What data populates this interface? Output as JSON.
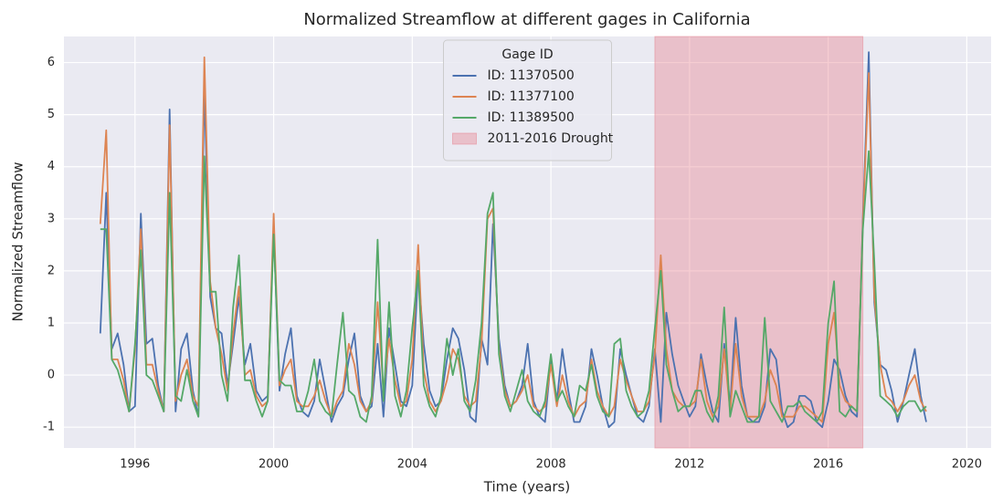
{
  "chart_data": {
    "type": "line",
    "title": "Normalized Streamflow at different gages in California",
    "xlabel": "Time (years)",
    "ylabel": "Normalized Streamflow",
    "legend_title": "Gage ID",
    "legend_loc": "upper center",
    "grid": true,
    "xlim": [
      1993.95,
      2020.7
    ],
    "ylim": [
      -1.4,
      6.5
    ],
    "xticks": [
      1996,
      2000,
      2004,
      2008,
      2012,
      2016,
      2020
    ],
    "yticks": [
      -1,
      0,
      1,
      2,
      3,
      4,
      5,
      6
    ],
    "drought": {
      "label": "2011-2016 Drought",
      "span": [
        2011,
        2017
      ],
      "color": "#e8838f"
    },
    "x": [
      1995,
      1995.17,
      1995.33,
      1995.5,
      1995.67,
      1995.83,
      1996,
      1996.17,
      1996.33,
      1996.5,
      1996.67,
      1996.83,
      1997,
      1997.17,
      1997.33,
      1997.5,
      1997.67,
      1997.83,
      1998,
      1998.17,
      1998.33,
      1998.5,
      1998.67,
      1998.83,
      1999,
      1999.17,
      1999.33,
      1999.5,
      1999.67,
      1999.83,
      2000,
      2000.17,
      2000.33,
      2000.5,
      2000.67,
      2000.83,
      2001,
      2001.17,
      2001.33,
      2001.5,
      2001.67,
      2001.83,
      2002,
      2002.17,
      2002.33,
      2002.5,
      2002.67,
      2002.83,
      2003,
      2003.17,
      2003.33,
      2003.5,
      2003.67,
      2003.83,
      2004,
      2004.17,
      2004.33,
      2004.5,
      2004.67,
      2004.83,
      2005,
      2005.17,
      2005.33,
      2005.5,
      2005.67,
      2005.83,
      2006,
      2006.17,
      2006.33,
      2006.5,
      2006.67,
      2006.83,
      2007,
      2007.17,
      2007.33,
      2007.5,
      2007.67,
      2007.83,
      2008,
      2008.17,
      2008.33,
      2008.5,
      2008.67,
      2008.83,
      2009,
      2009.17,
      2009.33,
      2009.5,
      2009.67,
      2009.83,
      2010,
      2010.17,
      2010.33,
      2010.5,
      2010.67,
      2010.83,
      2011,
      2011.17,
      2011.33,
      2011.5,
      2011.67,
      2011.83,
      2012,
      2012.17,
      2012.33,
      2012.5,
      2012.67,
      2012.83,
      2013,
      2013.17,
      2013.33,
      2013.5,
      2013.67,
      2013.83,
      2014,
      2014.17,
      2014.33,
      2014.5,
      2014.67,
      2014.83,
      2015,
      2015.17,
      2015.33,
      2015.5,
      2015.67,
      2015.83,
      2016,
      2016.17,
      2016.33,
      2016.5,
      2016.67,
      2016.83,
      2017,
      2017.17,
      2017.33,
      2017.5,
      2017.67,
      2017.83,
      2018,
      2018.17,
      2018.33,
      2018.5,
      2018.67,
      2018.83
    ],
    "series": [
      {
        "name": "ID: 11370500",
        "color": "#4c72b0",
        "values": [
          0.8,
          3.5,
          0.5,
          0.8,
          0.2,
          -0.7,
          -0.6,
          3.1,
          0.6,
          0.7,
          -0.2,
          -0.7,
          5.1,
          -0.7,
          0.5,
          0.8,
          -0.3,
          -0.8,
          5.5,
          1.5,
          0.9,
          0.8,
          -0.2,
          0.6,
          1.5,
          0.2,
          0.6,
          -0.3,
          -0.5,
          -0.4,
          2.8,
          -0.3,
          0.4,
          0.9,
          -0.4,
          -0.7,
          -0.8,
          -0.5,
          0.3,
          -0.3,
          -0.9,
          -0.6,
          -0.4,
          0.3,
          0.8,
          -0.4,
          -0.7,
          -0.6,
          0.6,
          -0.8,
          0.9,
          0.2,
          -0.5,
          -0.6,
          -0.2,
          2.0,
          0.6,
          -0.3,
          -0.6,
          -0.5,
          0.3,
          0.9,
          0.7,
          0.1,
          -0.8,
          -0.9,
          0.7,
          0.2,
          2.9,
          0.7,
          -0.2,
          -0.6,
          -0.5,
          -0.2,
          0.6,
          -0.5,
          -0.8,
          -0.9,
          0.3,
          -0.5,
          0.5,
          -0.3,
          -0.9,
          -0.9,
          -0.6,
          0.5,
          0.0,
          -0.6,
          -1.0,
          -0.9,
          0.5,
          0.0,
          -0.4,
          -0.8,
          -0.9,
          -0.6,
          0.5,
          -0.9,
          1.2,
          0.4,
          -0.2,
          -0.5,
          -0.8,
          -0.6,
          0.4,
          -0.2,
          -0.7,
          -0.9,
          0.6,
          -0.6,
          1.1,
          -0.2,
          -0.8,
          -0.9,
          -0.9,
          -0.6,
          0.5,
          0.3,
          -0.7,
          -1.0,
          -0.9,
          -0.4,
          -0.4,
          -0.5,
          -0.9,
          -1.0,
          -0.5,
          0.3,
          0.1,
          -0.4,
          -0.7,
          -0.8,
          3.0,
          6.2,
          1.4,
          0.2,
          0.1,
          -0.3,
          -0.9,
          -0.5,
          0.0,
          0.5,
          -0.4,
          -0.9
        ]
      },
      {
        "name": "ID: 11377100",
        "color": "#dd8452",
        "values": [
          2.9,
          4.7,
          0.3,
          0.3,
          -0.1,
          -0.7,
          0.5,
          2.8,
          0.2,
          0.2,
          -0.3,
          -0.7,
          4.8,
          -0.5,
          0.0,
          0.3,
          -0.4,
          -0.6,
          6.1,
          1.8,
          0.9,
          0.4,
          -0.3,
          0.8,
          1.7,
          0.0,
          0.1,
          -0.4,
          -0.6,
          -0.5,
          3.1,
          -0.2,
          0.1,
          0.3,
          -0.5,
          -0.6,
          -0.6,
          -0.4,
          -0.1,
          -0.5,
          -0.8,
          -0.5,
          -0.3,
          0.6,
          0.2,
          -0.5,
          -0.7,
          -0.5,
          1.4,
          -0.3,
          0.7,
          -0.1,
          -0.6,
          -0.5,
          0.3,
          2.5,
          0.1,
          -0.5,
          -0.7,
          -0.5,
          -0.1,
          0.5,
          0.3,
          -0.4,
          -0.6,
          -0.5,
          0.6,
          3.0,
          3.2,
          0.5,
          -0.3,
          -0.6,
          -0.5,
          -0.3,
          0.0,
          -0.6,
          -0.7,
          -0.6,
          0.2,
          -0.6,
          0.0,
          -0.5,
          -0.8,
          -0.6,
          -0.5,
          0.3,
          -0.3,
          -0.6,
          -0.8,
          -0.6,
          0.3,
          -0.1,
          -0.4,
          -0.7,
          -0.7,
          -0.5,
          0.4,
          2.3,
          0.5,
          -0.3,
          -0.5,
          -0.6,
          -0.6,
          -0.5,
          0.3,
          -0.5,
          -0.8,
          -0.6,
          0.5,
          -0.7,
          0.6,
          -0.4,
          -0.8,
          -0.8,
          -0.8,
          -0.5,
          0.1,
          -0.2,
          -0.8,
          -0.8,
          -0.8,
          -0.6,
          -0.6,
          -0.7,
          -0.8,
          -0.9,
          0.6,
          1.2,
          -0.2,
          -0.5,
          -0.6,
          -0.7,
          2.9,
          5.8,
          1.5,
          0.2,
          -0.4,
          -0.5,
          -0.7,
          -0.5,
          -0.2,
          0.0,
          -0.5,
          -0.7
        ]
      },
      {
        "name": "ID: 11389500",
        "color": "#55a868",
        "values": [
          2.8,
          2.8,
          0.3,
          0.1,
          -0.3,
          -0.7,
          0.6,
          2.4,
          0.0,
          -0.1,
          -0.4,
          -0.7,
          3.5,
          -0.4,
          -0.5,
          0.1,
          -0.5,
          -0.8,
          4.2,
          1.6,
          1.6,
          0.0,
          -0.5,
          1.3,
          2.3,
          -0.1,
          -0.1,
          -0.5,
          -0.8,
          -0.5,
          2.7,
          -0.1,
          -0.2,
          -0.2,
          -0.7,
          -0.7,
          -0.3,
          0.3,
          -0.5,
          -0.7,
          -0.8,
          0.2,
          1.2,
          -0.3,
          -0.4,
          -0.8,
          -0.9,
          -0.4,
          2.6,
          -0.5,
          1.4,
          -0.4,
          -0.8,
          -0.3,
          0.9,
          2.0,
          -0.2,
          -0.6,
          -0.8,
          -0.4,
          0.7,
          0.0,
          0.5,
          -0.5,
          -0.7,
          -0.1,
          1.0,
          3.1,
          3.5,
          0.4,
          -0.4,
          -0.7,
          -0.3,
          0.1,
          -0.5,
          -0.7,
          -0.8,
          -0.5,
          0.4,
          -0.5,
          -0.3,
          -0.6,
          -0.8,
          -0.2,
          -0.3,
          0.2,
          -0.4,
          -0.7,
          -0.8,
          0.6,
          0.7,
          -0.3,
          -0.6,
          -0.8,
          -0.7,
          -0.3,
          0.9,
          2.0,
          0.2,
          -0.3,
          -0.7,
          -0.6,
          -0.6,
          -0.3,
          -0.3,
          -0.7,
          -0.9,
          -0.4,
          1.3,
          -0.8,
          -0.3,
          -0.6,
          -0.9,
          -0.9,
          -0.8,
          1.1,
          -0.5,
          -0.7,
          -0.9,
          -0.6,
          -0.6,
          -0.5,
          -0.7,
          -0.8,
          -0.9,
          -0.7,
          1.0,
          1.8,
          -0.7,
          -0.8,
          -0.6,
          -0.7,
          2.8,
          4.3,
          2.2,
          -0.4,
          -0.5,
          -0.6,
          -0.8,
          -0.6,
          -0.5,
          -0.5,
          -0.7,
          -0.6
        ]
      }
    ]
  }
}
